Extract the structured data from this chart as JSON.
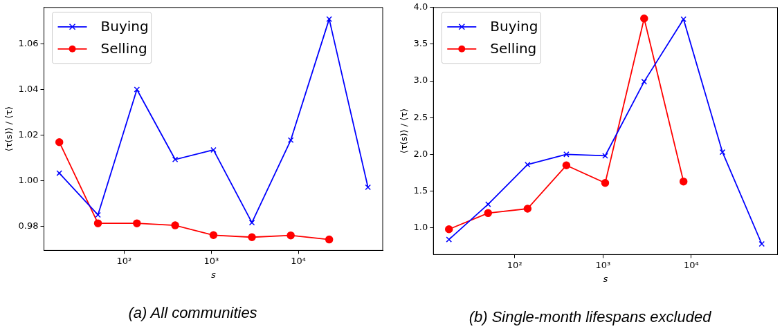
{
  "chart_data": [
    {
      "type": "line",
      "title": "(a) All communities",
      "xlabel": "s",
      "ylabel": "⟨τ(s)⟩ / ⟨τ⟩",
      "log": "x",
      "legend": "top left",
      "grid": false,
      "x": [
        18,
        50,
        140,
        385,
        1060,
        2930,
        8180,
        22600,
        63000
      ],
      "xlim": [
        12,
        93000
      ],
      "xticks": [
        {
          "value": 100,
          "label": "10²"
        },
        {
          "value": 1000,
          "label": "10³"
        },
        {
          "value": 10000,
          "label": "10⁴"
        }
      ],
      "ylim": [
        0.9694,
        1.076
      ],
      "yticks": [
        {
          "value": 0.98,
          "label": "0.98"
        },
        {
          "value": 1,
          "label": "1.00"
        },
        {
          "value": 1.02,
          "label": "1.02"
        },
        {
          "value": 1.04,
          "label": "1.04"
        },
        {
          "value": 1.06,
          "label": "1.06"
        }
      ],
      "series": [
        {
          "name": "Buying",
          "color": "#0000ff",
          "marker": "cross",
          "values": [
            1.0033,
            0.985,
            1.04,
            1.0093,
            1.0135,
            0.9816,
            1.0178,
            1.0709,
            0.9971
          ]
        },
        {
          "name": "Selling",
          "color": "#ff0000",
          "marker": "circle",
          "values": [
            1.0169,
            0.9813,
            0.9813,
            0.9804,
            0.9761,
            0.9752,
            0.976,
            0.9742,
            null
          ]
        }
      ]
    },
    {
      "type": "line",
      "title": "(b) Single-month lifespans excluded",
      "xlabel": "s",
      "ylabel": "⟨τ(s)⟩ / ⟨τ⟩",
      "log": "x",
      "legend": "top left",
      "grid": false,
      "x": [
        18,
        50,
        140,
        385,
        1060,
        2930,
        8180,
        22600,
        63000
      ],
      "xlim": [
        12,
        95000
      ],
      "xticks": [
        {
          "value": 100,
          "label": "10²"
        },
        {
          "value": 1000,
          "label": "10³"
        },
        {
          "value": 10000,
          "label": "10⁴"
        }
      ],
      "ylim": [
        0.635,
        4.0
      ],
      "yticks": [
        {
          "value": 1,
          "label": "1.0"
        },
        {
          "value": 1.5,
          "label": "1.5"
        },
        {
          "value": 2,
          "label": "2.0"
        },
        {
          "value": 2.5,
          "label": "2.5"
        },
        {
          "value": 3,
          "label": "3.0"
        },
        {
          "value": 3.5,
          "label": "3.5"
        },
        {
          "value": 4,
          "label": "4.0"
        }
      ],
      "series": [
        {
          "name": "Buying",
          "color": "#0000ff",
          "marker": "cross",
          "values": [
            0.84,
            1.32,
            1.86,
            2.0,
            1.98,
            2.99,
            3.84,
            2.03,
            0.78
          ]
        },
        {
          "name": "Selling",
          "color": "#ff0000",
          "marker": "circle",
          "values": [
            0.98,
            1.2,
            1.26,
            1.85,
            1.61,
            3.85,
            1.63,
            null,
            null
          ]
        }
      ]
    }
  ]
}
